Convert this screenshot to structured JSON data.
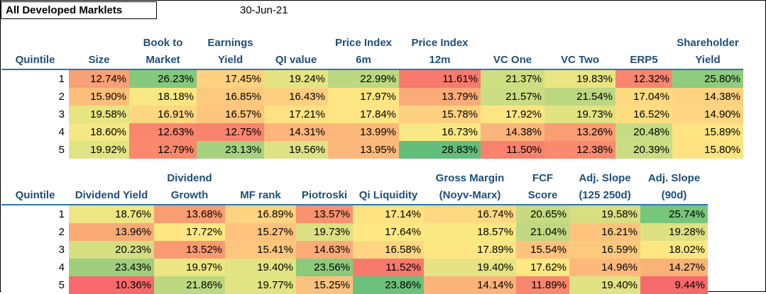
{
  "title": "All Developed Marklets",
  "date": "30-Jun-21",
  "table1": {
    "quintile_label": "Quintile",
    "headers": [
      [
        "Size"
      ],
      [
        "Book to",
        "Market"
      ],
      [
        "Earnings",
        "Yield"
      ],
      [
        "QI value"
      ],
      [
        "Price Index",
        "6m"
      ],
      [
        "Price Index",
        "12m"
      ],
      [
        "VC One"
      ],
      [
        "VC Two"
      ],
      [
        "ERP5"
      ],
      [
        "Shareholder",
        "Yield"
      ]
    ],
    "rows": [
      {
        "q": "1",
        "cells": [
          "12.74%",
          "26.23%",
          "17.45%",
          "19.24%",
          "22.99%",
          "11.61%",
          "21.37%",
          "19.83%",
          "12.32%",
          "25.80%"
        ]
      },
      {
        "q": "2",
        "cells": [
          "15.90%",
          "18.18%",
          "16.85%",
          "16.43%",
          "17.97%",
          "13.79%",
          "21.57%",
          "21.54%",
          "17.04%",
          "14.38%"
        ]
      },
      {
        "q": "3",
        "cells": [
          "19.58%",
          "16.91%",
          "16.57%",
          "17.21%",
          "17.84%",
          "15.78%",
          "17.92%",
          "19.73%",
          "16.52%",
          "14.90%"
        ]
      },
      {
        "q": "4",
        "cells": [
          "18.60%",
          "12.63%",
          "12.75%",
          "14.31%",
          "13.99%",
          "16.73%",
          "14.38%",
          "13.26%",
          "20.48%",
          "15.89%"
        ]
      },
      {
        "q": "5",
        "cells": [
          "19.92%",
          "12.79%",
          "23.13%",
          "19.56%",
          "13.95%",
          "28.83%",
          "11.50%",
          "12.38%",
          "20.39%",
          "15.80%"
        ]
      }
    ],
    "colors": [
      [
        "#f8a076",
        "#86c97d",
        "#fed280",
        "#e5e483",
        "#bcd881",
        "#f8796d",
        "#cfdd82",
        "#e9e583",
        "#f8866f",
        "#8ecb7e"
      ],
      [
        "#fdbe7c",
        "#f7e883",
        "#fdc97e",
        "#fdd081",
        "#fee683",
        "#fbab78",
        "#cbdc82",
        "#bcd881",
        "#fedb81",
        "#fed280"
      ],
      [
        "#e7e482",
        "#fed781",
        "#fdc57d",
        "#fee182",
        "#ffe583",
        "#fed080",
        "#fde583",
        "#e3e283",
        "#fedd81",
        "#fed681"
      ],
      [
        "#f5e884",
        "#f9866f",
        "#f8836e",
        "#fdb57b",
        "#fdb97b",
        "#f8e883",
        "#fbb47b",
        "#f99d73",
        "#c7dc82",
        "#fee483"
      ],
      [
        "#e2e383",
        "#f9886f",
        "#a6d27f",
        "#dfe283",
        "#fdb97b",
        "#63be7b",
        "#f8826e",
        "#f98a70",
        "#cbdc82",
        "#fee383"
      ]
    ]
  },
  "table2": {
    "quintile_label": "Quintile",
    "headers": [
      [
        "Dividend Yield"
      ],
      [
        "Dividend",
        "Growth"
      ],
      [
        "MF rank"
      ],
      [
        "Piotroski"
      ],
      [
        "Qi Liquidity"
      ],
      [
        "Gross Margin",
        "(Noyv-Marx)"
      ],
      [
        "FCF",
        "Score"
      ],
      [
        "Adj. Slope",
        "(125 250d)"
      ],
      [
        "Adj. Slope",
        "(90d)"
      ]
    ],
    "rows": [
      {
        "q": "1",
        "cells": [
          "18.76%",
          "13.68%",
          "16.89%",
          "13.57%",
          "17.14%",
          "16.74%",
          "20.65%",
          "19.58%",
          "25.74%"
        ]
      },
      {
        "q": "2",
        "cells": [
          "13.96%",
          "17.72%",
          "15.27%",
          "19.73%",
          "17.64%",
          "18.57%",
          "21.04%",
          "16.21%",
          "19.28%"
        ]
      },
      {
        "q": "3",
        "cells": [
          "20.23%",
          "13.52%",
          "15.41%",
          "14.63%",
          "16.58%",
          "17.89%",
          "15.54%",
          "16.59%",
          "18.02%"
        ]
      },
      {
        "q": "4",
        "cells": [
          "23.43%",
          "19.97%",
          "19.40%",
          "23.56%",
          "11.52%",
          "19.40%",
          "17.62%",
          "14.96%",
          "14.27%"
        ]
      },
      {
        "q": "5",
        "cells": [
          "10.36%",
          "21.86%",
          "19.77%",
          "15.25%",
          "23.86%",
          "14.14%",
          "11.89%",
          "19.40%",
          "9.44%"
        ]
      }
    ],
    "colors": [
      [
        "#eee583",
        "#f99d73",
        "#fed480",
        "#f9926f",
        "#fee382",
        "#fed882",
        "#c5da81",
        "#d7df82",
        "#78c57c"
      ],
      [
        "#fbaa77",
        "#fee783",
        "#fec27d",
        "#dde183",
        "#fee883",
        "#f9e882",
        "#bfd881",
        "#fdc37d",
        "#dde182"
      ],
      [
        "#d5df82",
        "#f99a73",
        "#fdc67d",
        "#fbab78",
        "#fed681",
        "#fee683",
        "#fdc27d",
        "#fdc97e",
        "#fee783"
      ],
      [
        "#9ece7e",
        "#ebe583",
        "#e2e383",
        "#8bca7d",
        "#f87a6e",
        "#e5e383",
        "#fee883",
        "#fdb97b",
        "#fbb279"
      ],
      [
        "#f8696b",
        "#bcd881",
        "#e2e383",
        "#fdc17d",
        "#6bc07b",
        "#fcb37a",
        "#f9876f",
        "#e1e283",
        "#f8696b"
      ]
    ]
  }
}
